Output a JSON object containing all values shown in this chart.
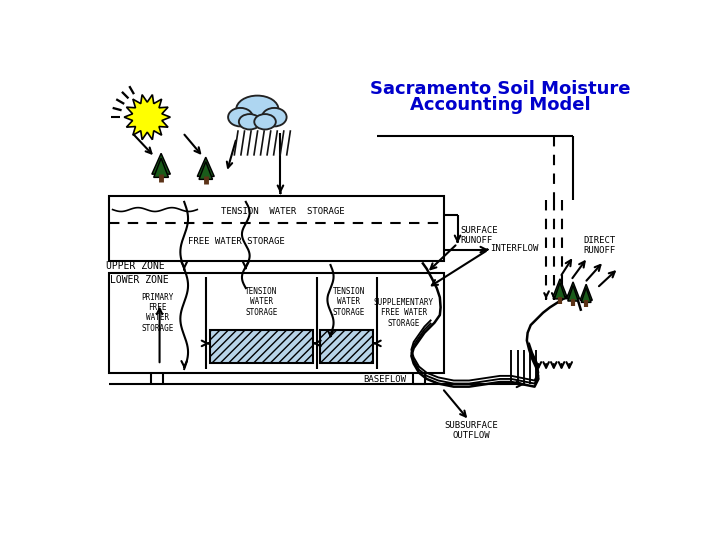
{
  "title_line1": "Sacramento Soil Moisture",
  "title_line2": "Accounting Model",
  "title_color": "#0000CC",
  "title_fontsize": 13,
  "bg_color": "#FFFFFF",
  "label_tension_water": "TENSION  WATER  STORAGE",
  "label_free_water": "FREE WATER STORAGE",
  "label_upper_zone": "UPPER ZONE",
  "label_lower_zone": "LOWER ZONE",
  "label_direct_runoff": "DIRECT\nRUNOFF",
  "label_surface_runoff": "SURFACE\nRUNOFF",
  "label_interflow": "INTERFLOW",
  "label_baseflow": "BASEFLOW",
  "label_subsurface": "SUBSURFACE\nOUTFLOW",
  "label_primary_free": "PRIMARY\nFREE\nWATER\nSTORAGE",
  "label_tension_water_lz1": "TENSION\nWATER\nSTORAGE",
  "label_tension_water_lz2": "TENSION\nWATER\nSTORAGE",
  "label_supplementary": "SUPPLEMENTARY\nFREE WATER\nSTORAGE",
  "hatch_color": "#B8D4E8",
  "line_color": "#000000",
  "line_width": 1.5,
  "cloud_color": "#AED6F1",
  "sun_color": "#FFFF00",
  "tree_color": "#1a5c1a"
}
